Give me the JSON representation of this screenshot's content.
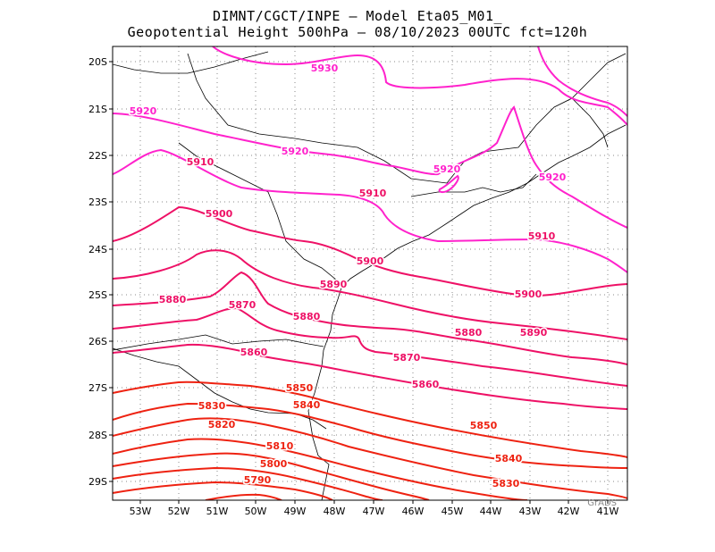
{
  "title_line1": "DIMNT/CGCT/INPE –  Model Eta05_M01_",
  "title_line2": "Geopotential Height 500hPa –  08/10/2023 00UTC fct=120h",
  "map": {
    "lon_range": [
      -53.6,
      -40.5
    ],
    "lat_range": [
      -29.4,
      -19.7
    ],
    "lat_ticks": [
      "20S",
      "21S",
      "22S",
      "23S",
      "24S",
      "25S",
      "26S",
      "27S",
      "28S",
      "29S"
    ],
    "lon_ticks": [
      "53W",
      "52W",
      "51W",
      "50W",
      "49W",
      "48W",
      "47W",
      "46W",
      "45W",
      "44W",
      "43W",
      "42W",
      "41W"
    ],
    "contour_labels": [
      "5930",
      "5920",
      "5920",
      "5920",
      "5920",
      "5910",
      "5910",
      "5910",
      "5900",
      "5900",
      "5900",
      "5890",
      "5890",
      "5880",
      "5880",
      "5880",
      "5870",
      "5870",
      "5860",
      "5860",
      "5850",
      "5850",
      "5840",
      "5840",
      "5830",
      "5830",
      "5820",
      "5810",
      "5800",
      "5790"
    ],
    "corner_text": "GrADS"
  },
  "colors": {
    "high": "#ff22cc",
    "mid": "#ee1166",
    "low": "#ee2211",
    "coast": "#000000",
    "grid": "#888888"
  }
}
